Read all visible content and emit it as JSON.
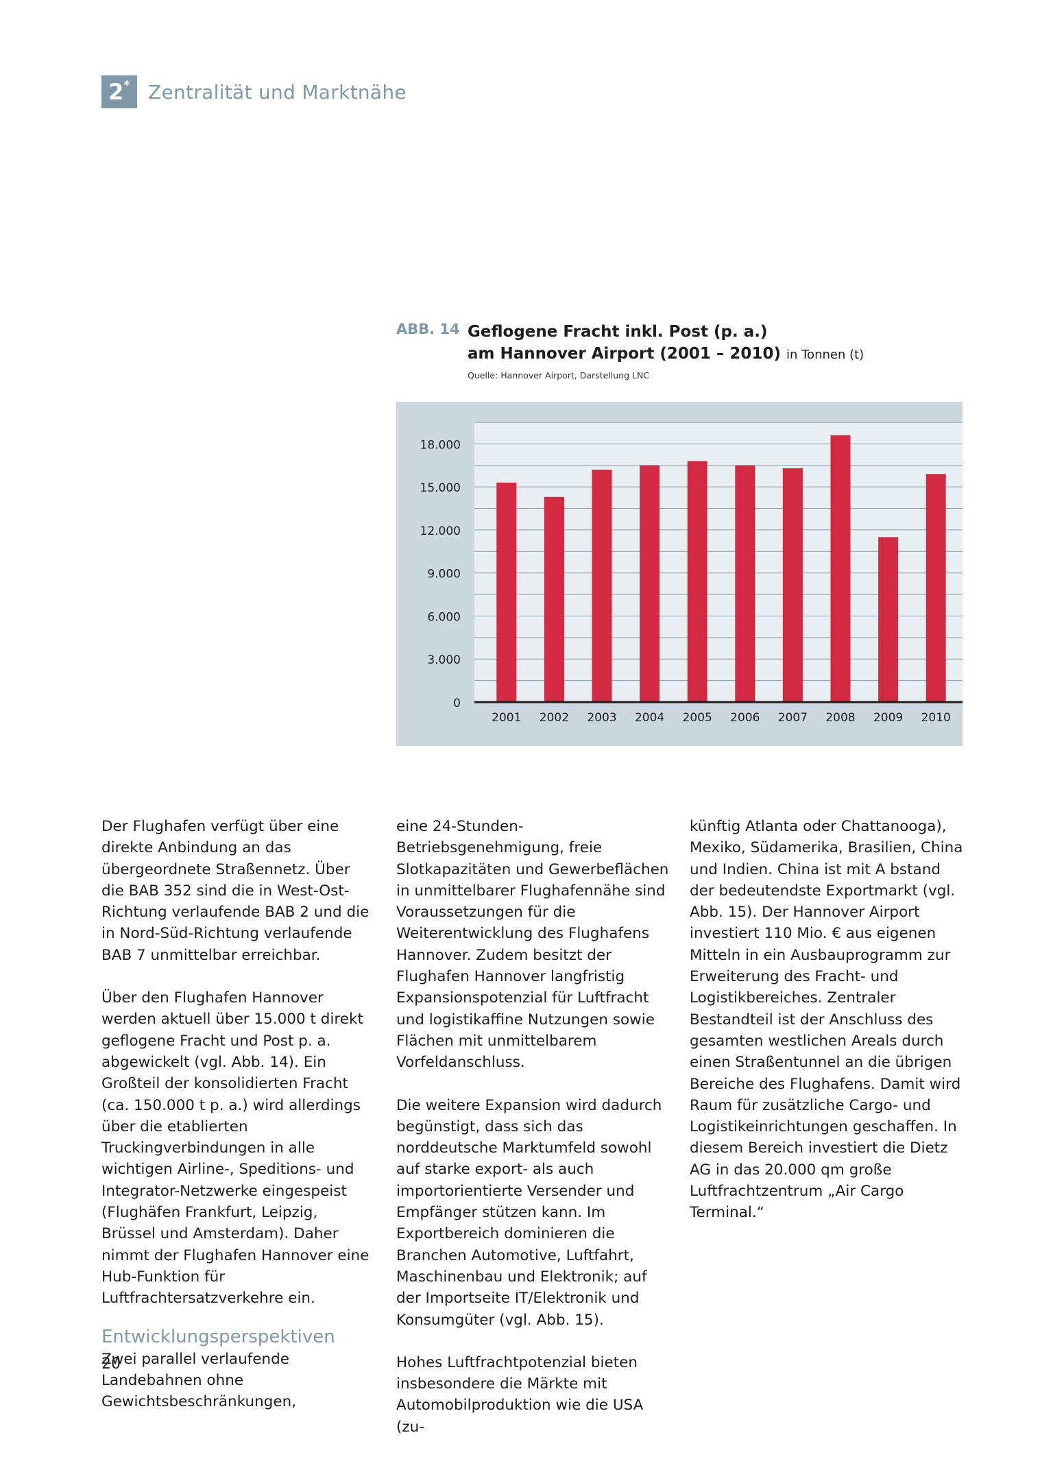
{
  "header": {
    "chapter_num": "2",
    "chapter_star": "*",
    "chapter_title": "Zentralität und Marktnähe"
  },
  "figure": {
    "label": "ABB. 14",
    "title_line1": "Geflogene Fracht inkl. Post (p. a.)",
    "title_line2": "am Hannover Airport (2001 – 2010)",
    "unit": "in Tonnen (t)",
    "source": "Quelle: Hannover Airport, Darstellung LNC"
  },
  "chart_data": {
    "type": "bar",
    "title": "Geflogene Fracht inkl. Post (p. a.) am Hannover Airport (2001 – 2010)",
    "xlabel": "",
    "ylabel": "",
    "categories": [
      "2001",
      "2002",
      "2003",
      "2004",
      "2005",
      "2006",
      "2007",
      "2008",
      "2009",
      "2010"
    ],
    "values": [
      15300,
      14300,
      16200,
      16500,
      16800,
      16500,
      16300,
      18600,
      11500,
      15900
    ],
    "ylim": [
      0,
      19500
    ],
    "yticks": [
      0,
      3000,
      6000,
      9000,
      12000,
      15000,
      18000
    ],
    "ytick_labels": [
      "0",
      "3.000",
      "6.000",
      "9.000",
      "12.000",
      "15.000",
      "18.000"
    ],
    "grid": true,
    "colors": {
      "bar": "#d22a43",
      "frame": "#cbd8e0",
      "plot_bg": "#e9eef2",
      "grid": "#8a9aa6",
      "axis": "#1d1d1b"
    }
  },
  "body": {
    "col1_p1": "Der Flughafen verfügt über eine direkte Anbindung an das übergeordnete Straßennetz. Über die BAB 352 sind die in West-Ost-Richtung verlaufende BAB 2 und die in Nord-Süd-Richtung verlaufende BAB 7 unmittelbar erreichbar.",
    "col1_p2": "Über den Flughafen Hannover werden aktuell über 15.000 t direkt geflogene Fracht und Post p. a. abgewickelt (vgl. Abb. 14). Ein Großteil der konsolidierten Fracht (ca. 150.000 t p. a.) wird allerdings über die etablierten Truckingverbindungen in alle wichtigen Airline-, Speditions- und Integrator-Netzwerke eingespeist (Flughäfen Frankfurt, Leipzig, Brüssel und Amsterdam). Daher nimmt der Flughafen Hannover eine Hub-Funktion für Luftfrachtersatzverkehre ein.",
    "col1_subhead": "Entwicklungsperspektiven",
    "col1_p3": "Zwei parallel verlaufende Landebahnen ohne Gewichtsbeschränkungen,",
    "col2_p1": "eine 24-Stunden-Betriebsgenehmigung, freie Slotkapazitäten und Gewerbeflächen in unmittelbarer Flughafennähe sind Voraussetzungen für die Weiterentwicklung des Flughafens Hannover. Zudem besitzt der Flughafen Hannover langfristig Expansionspotenzial für Luftfracht und logistikaffine Nutzungen sowie Flächen mit unmittelbarem Vorfeldanschluss.",
    "col2_p2": "Die weitere Expansion wird dadurch begünstigt, dass sich das norddeutsche Marktumfeld sowohl auf starke export- als auch importorientierte Versender und Empfänger stützen kann. Im Exportbereich dominieren die Branchen Automotive, Luftfahrt, Maschinenbau und Elektronik; auf der Importseite IT/Elektronik und Konsumgüter (vgl. Abb. 15).",
    "col2_p3": "Hohes Luftfrachtpotenzial bieten insbesondere die Märkte mit Automobilproduktion wie die USA (zu-",
    "col3_p1": "künftig Atlanta oder Chattanooga), Mexiko, Südamerika, Brasilien, China und Indien. China ist mit A bstand der bedeutendste Exportmarkt (vgl. Abb. 15). Der Hannover Airport investiert 110 Mio. € aus eigenen Mitteln in ein Ausbauprogramm zur Erweiterung des Fracht- und Logistikbereiches. Zentraler Bestandteil ist der Anschluss des gesamten westlichen Areals durch einen Straßentunnel an die übrigen Bereiche des Flughafens. Damit wird Raum für zusätzliche Cargo- und Logistikeinrichtungen geschaffen. In diesem Bereich investiert die Dietz AG in das 20.000 qm große Luftfrachtzentrum „Air Cargo Terminal.“"
  },
  "page_number": "20"
}
